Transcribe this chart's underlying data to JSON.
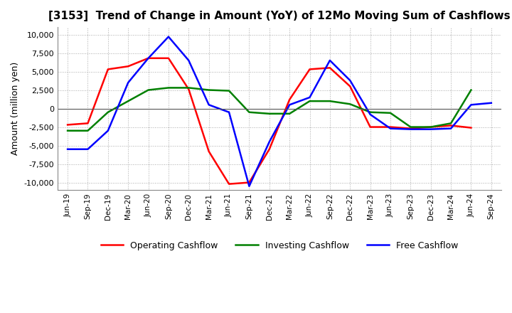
{
  "title": "[3153]  Trend of Change in Amount (YoY) of 12Mo Moving Sum of Cashflows",
  "ylabel": "Amount (million yen)",
  "ylim": [
    -11000,
    11000
  ],
  "yticks": [
    -10000,
    -7500,
    -5000,
    -2500,
    0,
    2500,
    5000,
    7500,
    10000
  ],
  "labels": [
    "Jun-19",
    "Sep-19",
    "Dec-19",
    "Mar-20",
    "Jun-20",
    "Sep-20",
    "Dec-20",
    "Mar-21",
    "Jun-21",
    "Sep-21",
    "Dec-21",
    "Mar-22",
    "Jun-22",
    "Sep-22",
    "Dec-22",
    "Mar-23",
    "Jun-23",
    "Sep-23",
    "Dec-23",
    "Mar-24",
    "Jun-24",
    "Sep-24"
  ],
  "operating": [
    -2200,
    -2000,
    5300,
    5700,
    6800,
    6800,
    2600,
    -5800,
    -10200,
    -10000,
    -5500,
    1200,
    5300,
    5500,
    3000,
    -2500,
    -2500,
    -2700,
    -2500,
    -2300,
    -2600,
    null
  ],
  "investing": [
    -3000,
    -3000,
    -500,
    1000,
    2500,
    2800,
    2800,
    2500,
    2400,
    -500,
    -700,
    -700,
    1000,
    1000,
    600,
    -500,
    -600,
    -2500,
    -2500,
    -2000,
    2500,
    null
  ],
  "free": [
    -5500,
    -5500,
    -3000,
    3500,
    6800,
    9700,
    6500,
    500,
    -500,
    -10500,
    -4500,
    500,
    1500,
    6500,
    3800,
    -800,
    -2700,
    -2800,
    -2800,
    -2700,
    500,
    750
  ],
  "operating_color": "#ff0000",
  "investing_color": "#008000",
  "free_color": "#0000ff",
  "bg_color": "#ffffff",
  "grid_color": "#aaaaaa",
  "legend_labels": [
    "Operating Cashflow",
    "Investing Cashflow",
    "Free Cashflow"
  ]
}
